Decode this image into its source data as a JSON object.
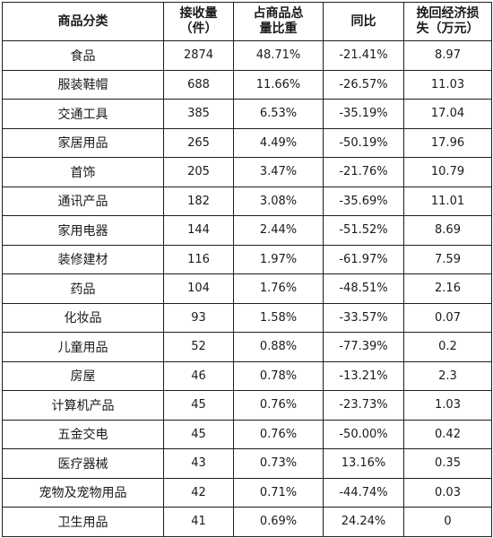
{
  "table": {
    "headers": [
      [
        "商品分类"
      ],
      [
        "接收量",
        "（件）"
      ],
      [
        "占商品总",
        "量比重"
      ],
      [
        "同比"
      ],
      [
        "挽回经济损",
        "失（万元）"
      ]
    ],
    "rows": [
      [
        "食品",
        "2874",
        "48.71%",
        "-21.41%",
        "8.97"
      ],
      [
        "服装鞋帽",
        "688",
        "11.66%",
        "-26.57%",
        "11.03"
      ],
      [
        "交通工具",
        "385",
        "6.53%",
        "-35.19%",
        "17.04"
      ],
      [
        "家居用品",
        "265",
        "4.49%",
        "-50.19%",
        "17.96"
      ],
      [
        "首饰",
        "205",
        "3.47%",
        "-21.76%",
        "10.79"
      ],
      [
        "通讯产品",
        "182",
        "3.08%",
        "-35.69%",
        "11.01"
      ],
      [
        "家用电器",
        "144",
        "2.44%",
        "-51.52%",
        "8.69"
      ],
      [
        "装修建材",
        "116",
        "1.97%",
        "-61.97%",
        "7.59"
      ],
      [
        "药品",
        "104",
        "1.76%",
        "-48.51%",
        "2.16"
      ],
      [
        "化妆品",
        "93",
        "1.58%",
        "-33.57%",
        "0.07"
      ],
      [
        "儿童用品",
        "52",
        "0.88%",
        "-77.39%",
        "0.2"
      ],
      [
        "房屋",
        "46",
        "0.78%",
        "-13.21%",
        "2.3"
      ],
      [
        "计算机产品",
        "45",
        "0.76%",
        "-23.73%",
        "1.03"
      ],
      [
        "五金交电",
        "45",
        "0.76%",
        "-50.00%",
        "0.42"
      ],
      [
        "医疗器械",
        "43",
        "0.73%",
        "13.16%",
        "0.35"
      ],
      [
        "宠物及宠物用品",
        "42",
        "0.71%",
        "-44.74%",
        "0.03"
      ],
      [
        "卫生用品",
        "41",
        "0.69%",
        "24.24%",
        "0"
      ]
    ]
  }
}
